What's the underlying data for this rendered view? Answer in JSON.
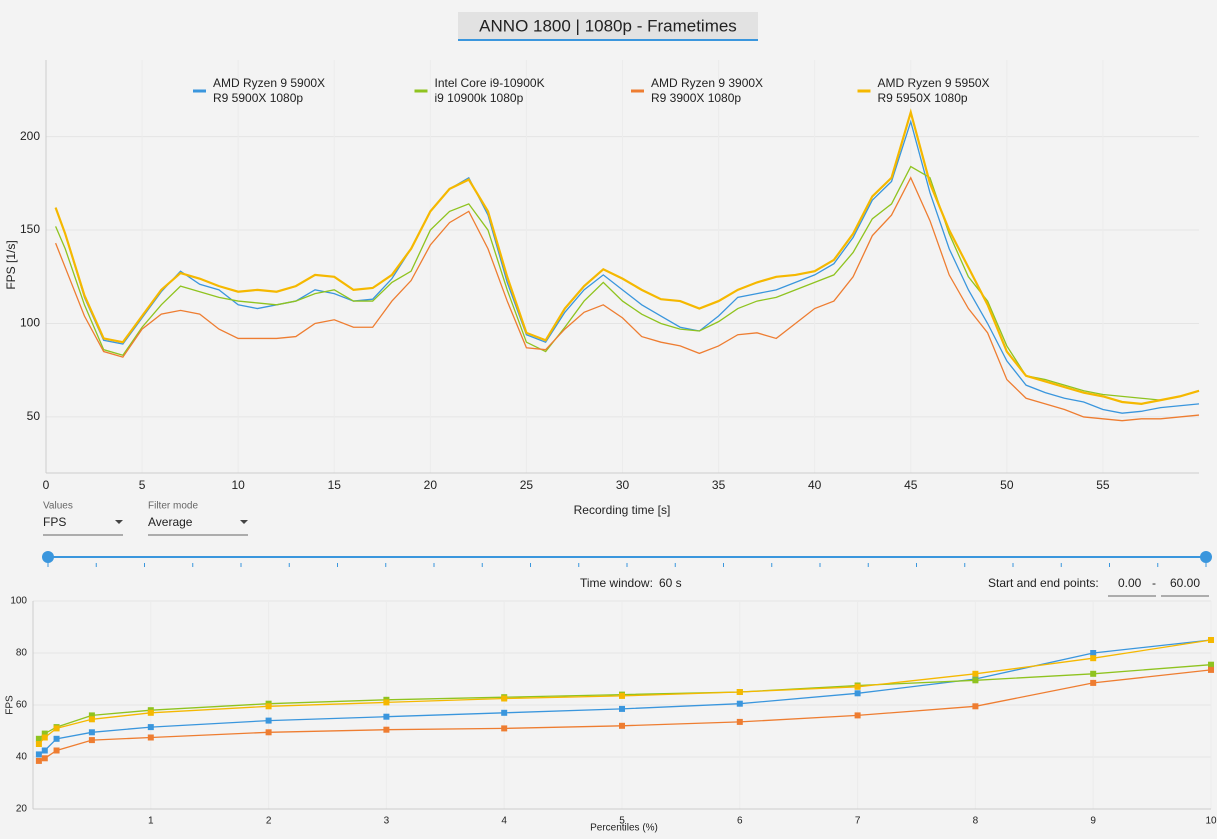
{
  "window_title": "ANNO 1800 | 1080p - Frametimes",
  "controls": {
    "values_label": "Values",
    "values_choice": "FPS",
    "filter_label": "Filter mode",
    "filter_choice": "Average",
    "time_window_label": "Time window:",
    "time_window_value": "60 s",
    "range_label": "Start and end points:",
    "range_start": "0.00",
    "range_sep": "-",
    "range_end": "60.00"
  },
  "chart_data": [
    {
      "type": "line",
      "xlabel": "Recording time [s]",
      "ylabel": "FPS [1/s]",
      "xlim": [
        0,
        60
      ],
      "ylim": [
        20,
        241
      ],
      "xticks": [
        0,
        5,
        10,
        15,
        20,
        25,
        30,
        35,
        40,
        45,
        50,
        55
      ],
      "yticks": [
        50,
        100,
        150,
        200
      ],
      "grid": true,
      "x": [
        0.5,
        1,
        2,
        3,
        4,
        5,
        6,
        7,
        8,
        9,
        10,
        11,
        12,
        13,
        14,
        15,
        16,
        17,
        18,
        19,
        20,
        21,
        22,
        23,
        24,
        25,
        26,
        27,
        28,
        29,
        30,
        31,
        32,
        33,
        34,
        35,
        36,
        37,
        38,
        39,
        40,
        41,
        42,
        43,
        44,
        45,
        46,
        47,
        48,
        49,
        50,
        51,
        52,
        53,
        54,
        55,
        56,
        57,
        58,
        59,
        60
      ],
      "series": [
        {
          "name": "AMD Ryzen 9 5900X",
          "description": "R9 5900X 1080p",
          "color": "#3a96dd",
          "values": [
            162,
            148,
            114,
            91,
            89,
            103,
            117,
            128,
            121,
            118,
            110,
            108,
            110,
            112,
            118,
            116,
            112,
            113,
            124,
            140,
            160,
            172,
            178,
            158,
            122,
            94,
            90,
            106,
            118,
            126,
            118,
            110,
            104,
            98,
            96,
            104,
            114,
            116,
            118,
            122,
            126,
            132,
            146,
            166,
            176,
            208,
            170,
            140,
            118,
            100,
            80,
            67,
            63,
            60,
            58,
            54,
            52,
            53,
            55,
            56,
            57
          ]
        },
        {
          "name": "Intel Core i9-10900K",
          "description": "i9 10900k 1080p",
          "color": "#8fc31f",
          "values": [
            152,
            140,
            110,
            86,
            83,
            98,
            110,
            120,
            117,
            114,
            112,
            111,
            110,
            112,
            116,
            118,
            112,
            112,
            122,
            128,
            150,
            160,
            164,
            150,
            118,
            90,
            85,
            98,
            112,
            122,
            112,
            105,
            100,
            97,
            96,
            101,
            108,
            112,
            114,
            118,
            122,
            126,
            138,
            156,
            164,
            184,
            178,
            148,
            125,
            112,
            88,
            72,
            70,
            67,
            64,
            62,
            61,
            60,
            59,
            61,
            64
          ]
        },
        {
          "name": "AMD Ryzen 9 3900X",
          "description": "R9 3900X 1080p",
          "color": "#ee7d31",
          "values": [
            143,
            130,
            104,
            85,
            82,
            97,
            105,
            107,
            105,
            97,
            92,
            92,
            92,
            93,
            100,
            102,
            98,
            98,
            112,
            123,
            142,
            154,
            160,
            140,
            112,
            87,
            86,
            97,
            106,
            110,
            103,
            93,
            90,
            88,
            84,
            88,
            94,
            95,
            92,
            100,
            108,
            112,
            125,
            147,
            158,
            178,
            155,
            126,
            108,
            95,
            70,
            60,
            57,
            54,
            50,
            49,
            48,
            49,
            49,
            50,
            51
          ]
        },
        {
          "name": "AMD Ryzen 9 5950X",
          "description": "R9 5950X 1080p",
          "color": "#f5b800",
          "values": [
            162,
            148,
            115,
            92,
            90,
            104,
            118,
            127,
            124,
            120,
            117,
            118,
            117,
            120,
            126,
            125,
            118,
            119,
            126,
            140,
            160,
            172,
            177,
            160,
            125,
            95,
            91,
            108,
            120,
            129,
            124,
            118,
            113,
            112,
            108,
            112,
            118,
            122,
            125,
            126,
            128,
            134,
            148,
            168,
            178,
            213,
            175,
            150,
            130,
            110,
            85,
            72,
            69,
            66,
            63,
            61,
            58,
            57,
            59,
            61,
            64
          ]
        }
      ]
    },
    {
      "type": "line",
      "markers": "square",
      "xlabel": "Percentiles (%)",
      "ylabel": "FPS",
      "xlim": [
        0,
        10
      ],
      "ylim": [
        20,
        100
      ],
      "xticks": [
        1,
        2,
        3,
        4,
        5,
        6,
        7,
        8,
        9,
        10
      ],
      "yticks": [
        20,
        40,
        60,
        80,
        100
      ],
      "grid": true,
      "x": [
        0.05,
        0.1,
        0.2,
        0.5,
        1,
        2,
        3,
        4,
        5,
        6,
        7,
        8,
        9,
        10
      ],
      "series": [
        {
          "color": "#3a96dd",
          "values": [
            41,
            42.5,
            47,
            49.5,
            51.5,
            54,
            55.5,
            57,
            58.5,
            60.5,
            64.5,
            70,
            80,
            85
          ]
        },
        {
          "color": "#8fc31f",
          "values": [
            47,
            49,
            51.5,
            56,
            58,
            60.5,
            62,
            63,
            64,
            65,
            67.5,
            69.5,
            72,
            75.5
          ]
        },
        {
          "color": "#f5b800",
          "values": [
            45,
            47.5,
            51,
            54.5,
            57,
            59.5,
            61,
            62.5,
            63.5,
            65,
            67,
            72,
            78,
            85
          ]
        },
        {
          "color": "#ee7d31",
          "values": [
            38.5,
            39.5,
            42.5,
            46.5,
            47.5,
            49.5,
            50.5,
            51,
            52,
            53.5,
            56,
            59.5,
            68.5,
            73.5
          ]
        }
      ]
    }
  ]
}
